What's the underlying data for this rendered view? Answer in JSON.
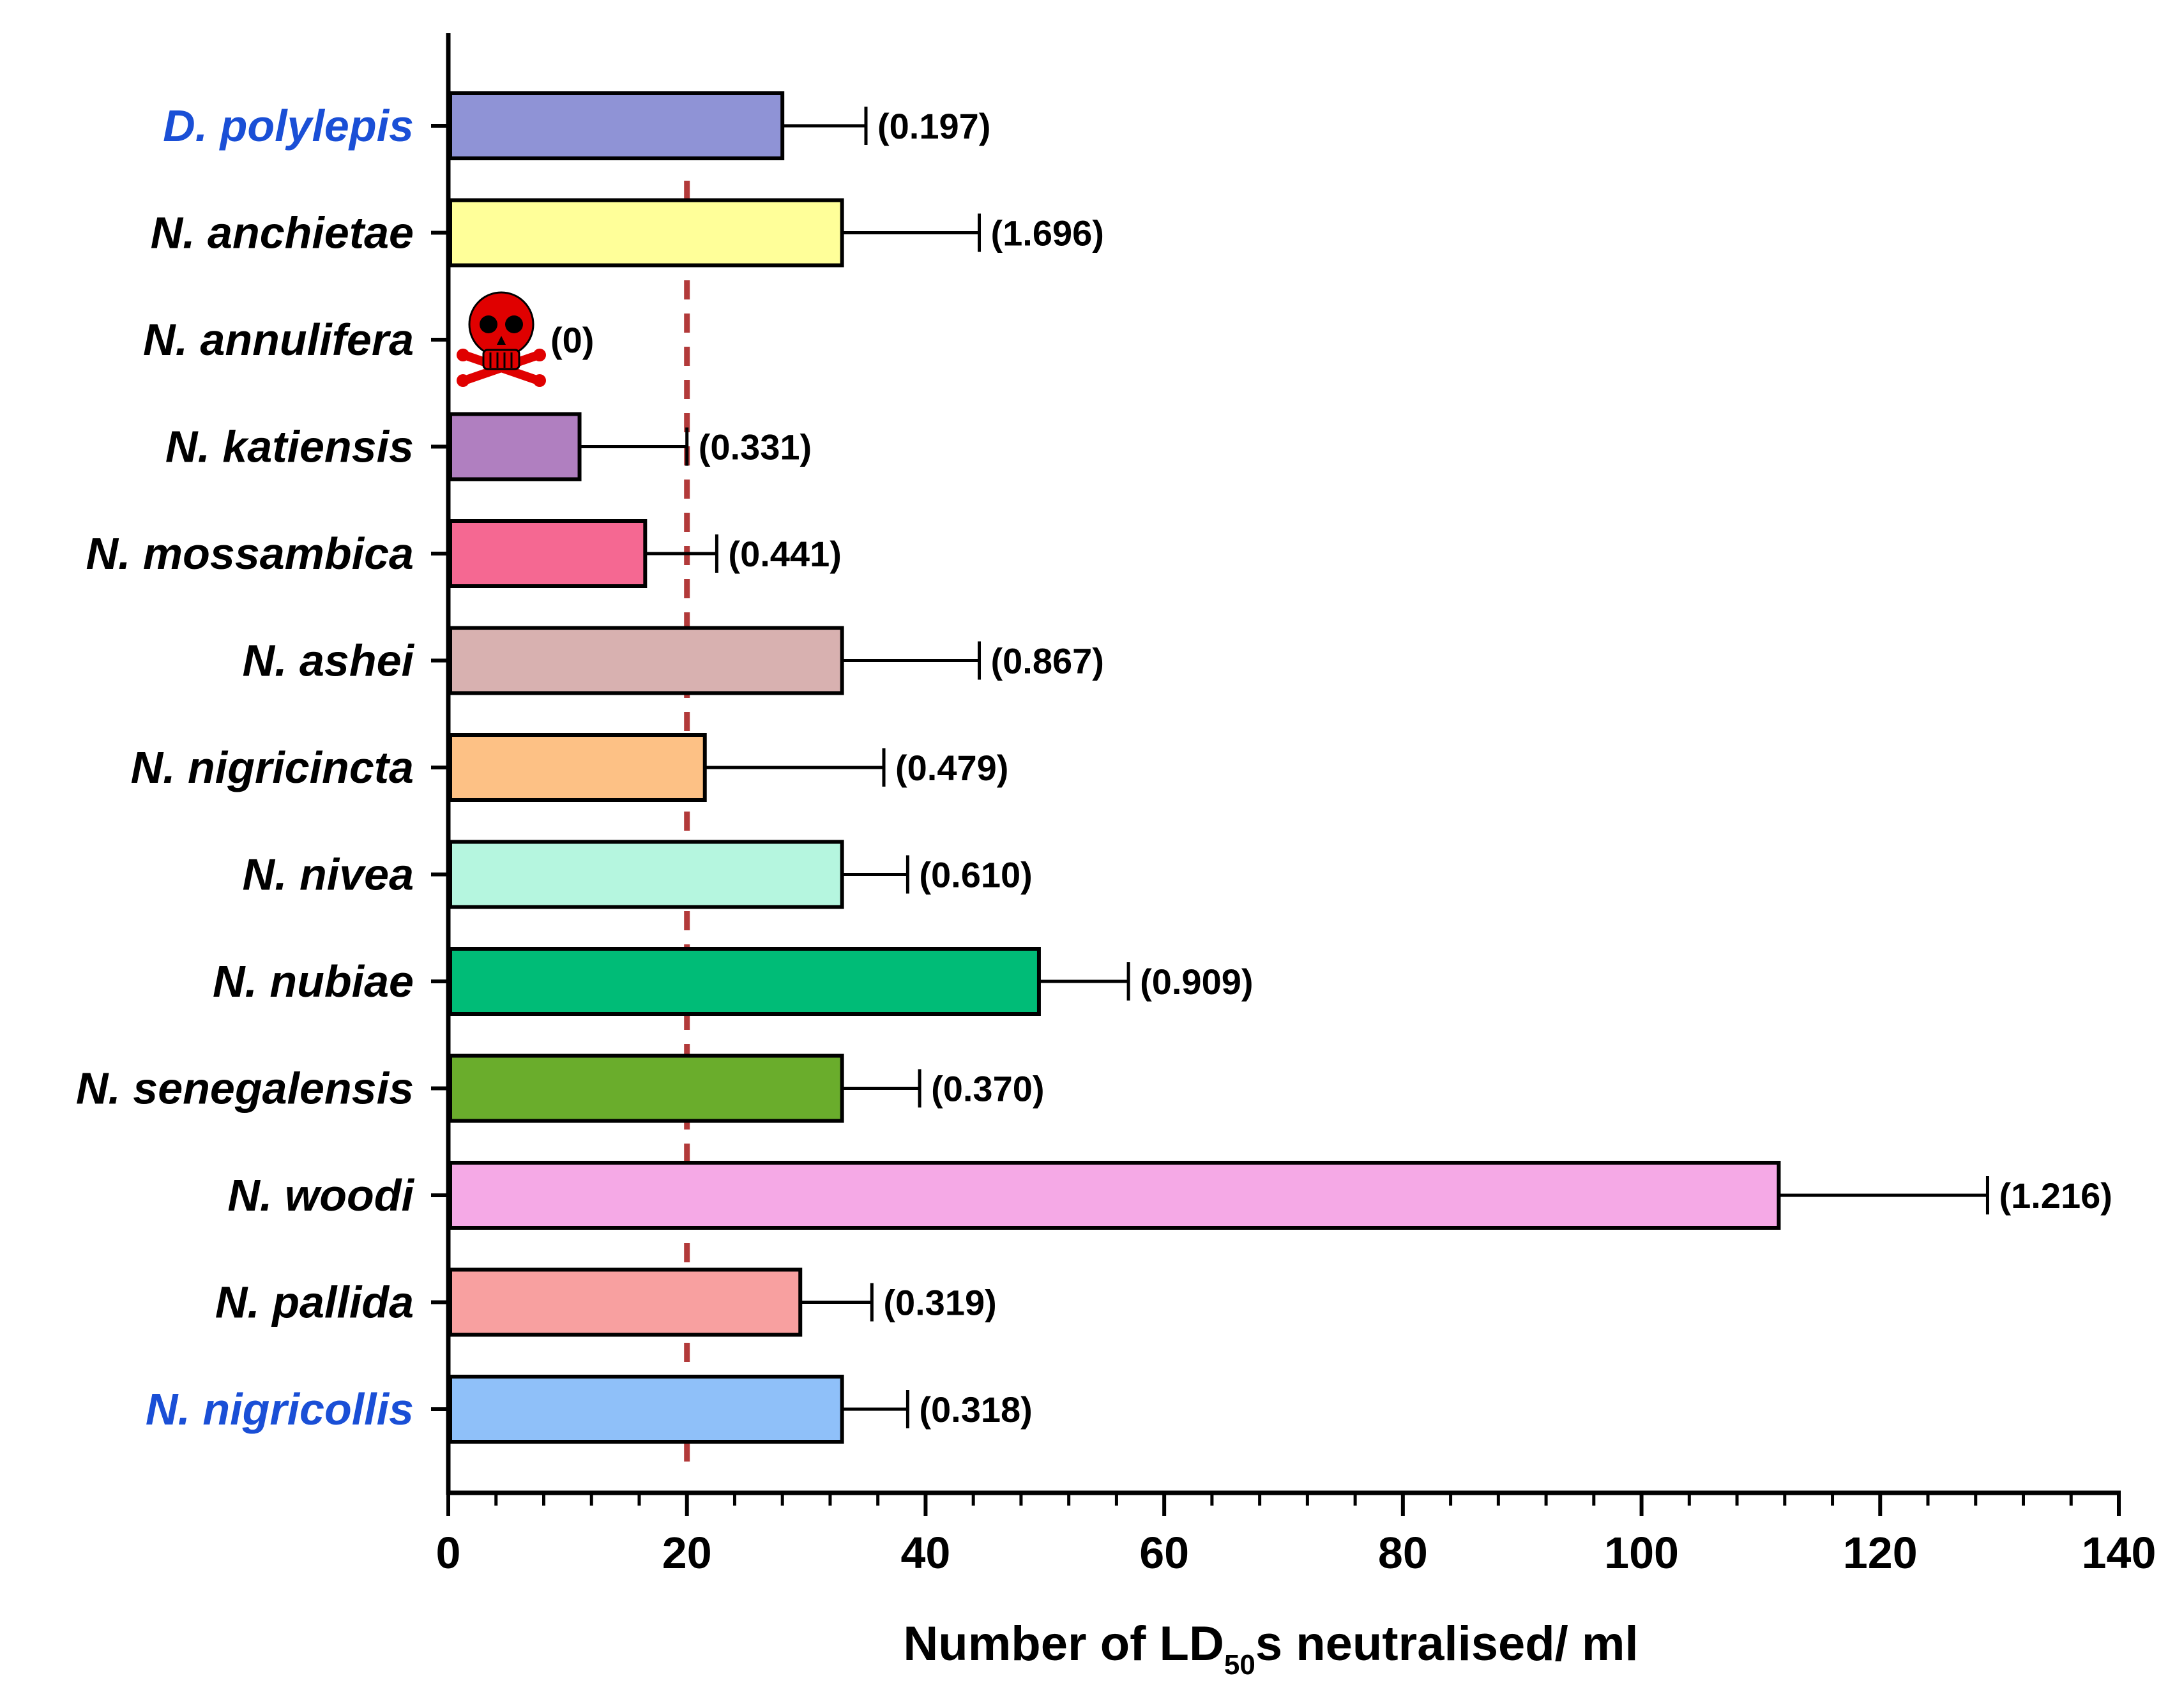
{
  "chart_data": {
    "type": "bar",
    "orientation": "horizontal",
    "title": "",
    "xlabel": "Number of LD50s neutralised/ ml",
    "xlabel_parts": {
      "main": "Number of LD",
      "subscript": "50",
      "rest": "s neutralised/ ml"
    },
    "ylabel": "",
    "xlim": [
      0,
      140
    ],
    "xticks": [
      0,
      20,
      40,
      60,
      80,
      100,
      120,
      140
    ],
    "xtick_labels": [
      "0",
      "20",
      "40",
      "60",
      "80",
      "100",
      "120",
      "140"
    ],
    "minor_tick_step": 4,
    "reference_line": {
      "value": 20,
      "style": "dashed",
      "color": "#b23a3a"
    },
    "categories": [
      "D. polylepis",
      "N. anchietae",
      "N. annulifera",
      "N. katiensis",
      "N. mossambica",
      "N. ashei",
      "N. nigricincta",
      "N. nivea",
      "N. nubiae",
      "N. senegalensis",
      "N. woodi",
      "N. pallida",
      "N. nigricollis"
    ],
    "values": [
      28,
      33,
      0,
      11,
      16.5,
      33,
      21.5,
      33,
      49.5,
      33,
      111.5,
      29.5,
      33
    ],
    "error_upper": [
      35,
      44.5,
      null,
      20,
      22.5,
      44.5,
      36.5,
      38.5,
      57,
      39.5,
      129,
      35.5,
      38.5
    ],
    "annotations": [
      "(0.197)",
      "(1.696)",
      "(0)",
      "(0.331)",
      "(0.441)",
      "(0.867)",
      "(0.479)",
      "(0.610)",
      "(0.909)",
      "(0.370)",
      "(1.216)",
      "(0.319)",
      "(0.318)"
    ],
    "colors": [
      "#8f93d6",
      "#ffff99",
      null,
      "#b07fc0",
      "#f56892",
      "#d8b1b0",
      "#fdc185",
      "#b5f6df",
      "#00bc77",
      "#6aad2c",
      "#f5a9e6",
      "#f8a0a0",
      "#8fc0f9"
    ],
    "label_colors": [
      "#1a4fd6",
      "#000000",
      "#000000",
      "#000000",
      "#000000",
      "#000000",
      "#000000",
      "#000000",
      "#000000",
      "#000000",
      "#000000",
      "#000000",
      "#1a4fd6"
    ],
    "marker": {
      "category": "N. annulifera",
      "icon": "skull-crossbones-icon",
      "color": "#e00000"
    },
    "grid": false,
    "legend": "none"
  }
}
